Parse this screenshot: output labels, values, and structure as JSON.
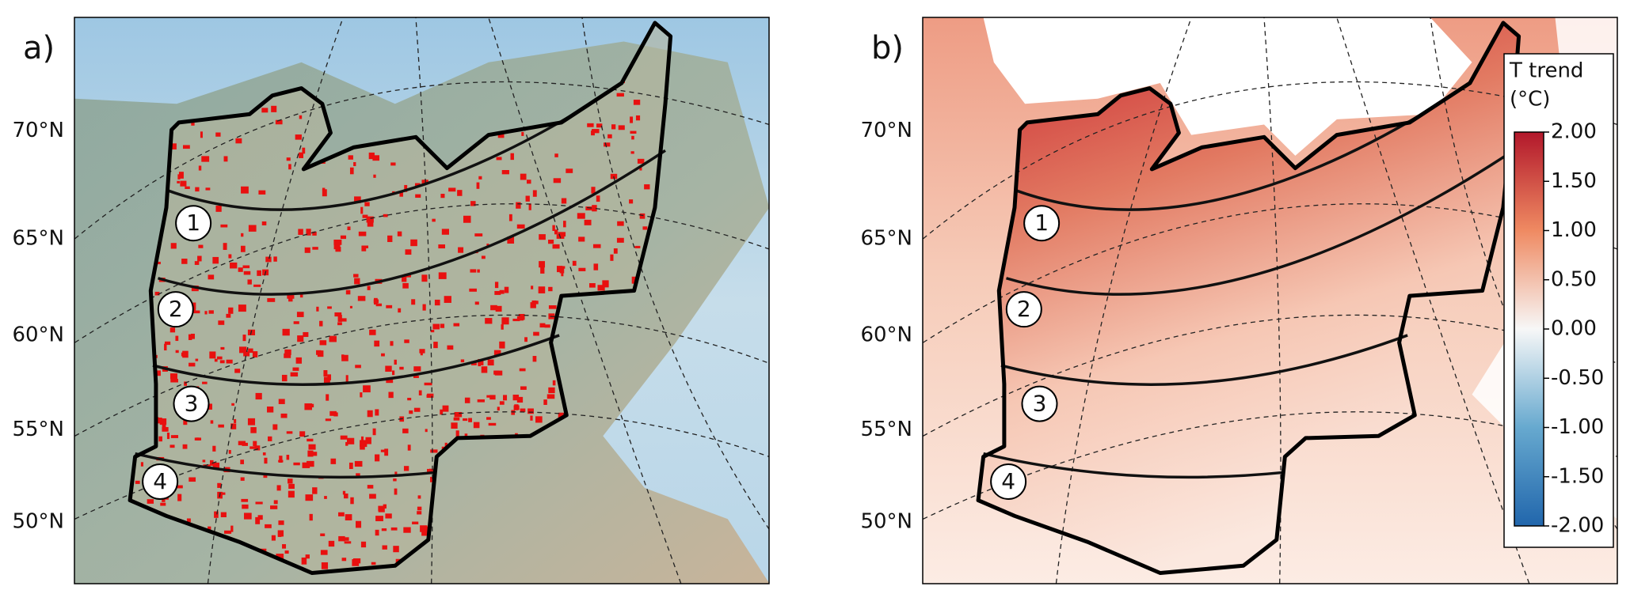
{
  "panels": [
    {
      "label": "a)",
      "lat_labels": [
        "70°N",
        "65°N",
        "60°N",
        "55°N",
        "50°N"
      ],
      "zones": [
        "1",
        "2",
        "3",
        "4"
      ]
    },
    {
      "label": "b)",
      "lat_labels": [
        "70°N",
        "65°N",
        "60°N",
        "55°N",
        "50°N"
      ],
      "zones": [
        "1",
        "2",
        "3",
        "4"
      ]
    }
  ],
  "colorbar": {
    "title_lines": [
      "T trend",
      "(°C)"
    ],
    "lim": [
      -2,
      2
    ],
    "ticks": [
      {
        "value": 2,
        "label": "2.00"
      },
      {
        "value": 1.5,
        "label": "1.50"
      },
      {
        "value": 1,
        "label": "1.00"
      },
      {
        "value": 0.5,
        "label": "0.50"
      },
      {
        "value": 0,
        "label": "0.00"
      },
      {
        "value": -0.5,
        "label": "-0.50"
      },
      {
        "value": -1,
        "label": "-1.00"
      },
      {
        "value": -1.5,
        "label": "-1.50"
      },
      {
        "value": -2,
        "label": "-2.00"
      }
    ]
  }
}
